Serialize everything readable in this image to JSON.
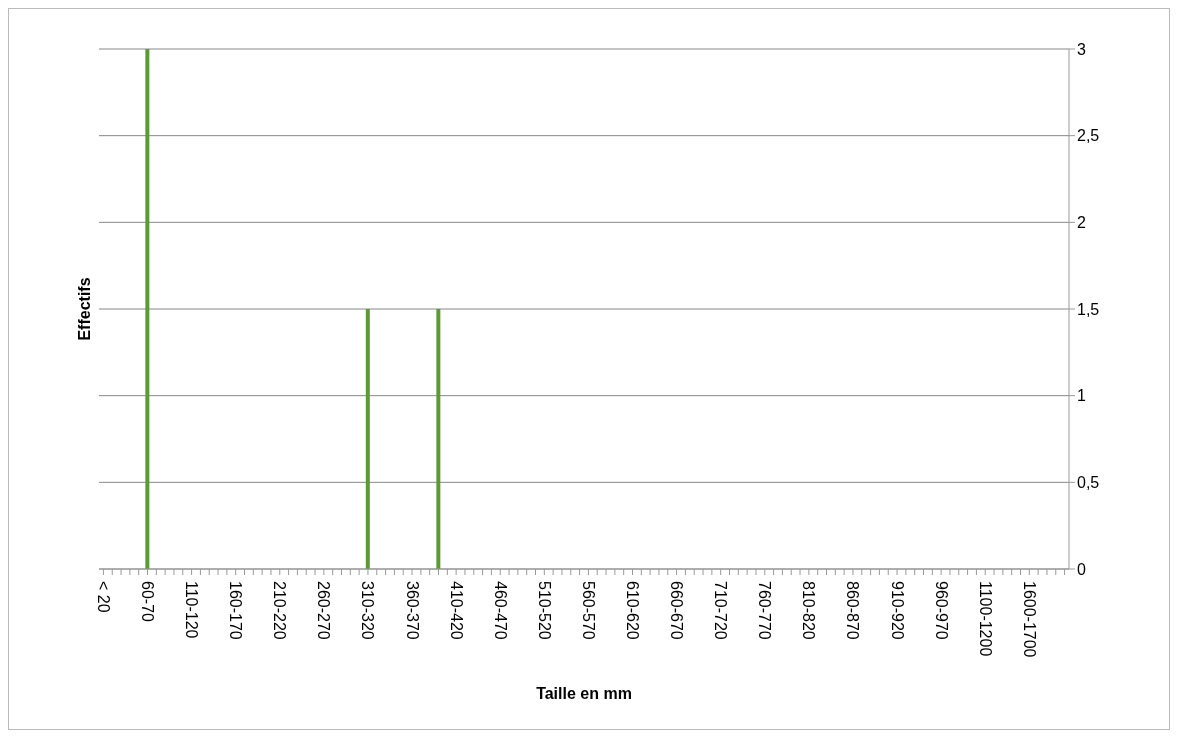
{
  "chart_data": {
    "type": "bar",
    "xlabel": "Taille en mm",
    "ylabel": "Effectifs",
    "categories": [
      "< 20",
      null,
      null,
      null,
      null,
      "60-70",
      null,
      null,
      null,
      null,
      "110-120",
      null,
      null,
      null,
      null,
      "160-170",
      null,
      null,
      null,
      null,
      "210-220",
      null,
      null,
      null,
      null,
      "260-270",
      null,
      null,
      null,
      null,
      "310-320",
      null,
      null,
      null,
      null,
      "360-370",
      null,
      null,
      null,
      null,
      "410-420",
      null,
      null,
      null,
      null,
      "460-470",
      null,
      null,
      null,
      null,
      "510-520",
      null,
      null,
      null,
      null,
      "560-570",
      null,
      null,
      null,
      null,
      "610-620",
      null,
      null,
      null,
      null,
      "660-670",
      null,
      null,
      null,
      null,
      "710-720",
      null,
      null,
      null,
      null,
      "760-770",
      null,
      null,
      null,
      null,
      "810-820",
      null,
      null,
      null,
      null,
      "860-870",
      null,
      null,
      null,
      null,
      "910-920",
      null,
      null,
      null,
      null,
      "960-970",
      null,
      null,
      null,
      null,
      "1100-1200",
      null,
      null,
      null,
      null,
      "1600-1700",
      null,
      null,
      null,
      null
    ],
    "values": [
      0,
      0,
      0,
      0,
      0,
      3,
      0,
      0,
      0,
      0,
      0,
      0,
      0,
      0,
      0,
      0,
      0,
      0,
      0,
      0,
      0,
      0,
      0,
      0,
      0,
      0,
      0,
      0,
      0,
      0,
      1.5,
      0,
      0,
      0,
      0,
      0,
      0,
      0,
      1.5,
      0,
      0,
      0,
      0,
      0,
      0,
      0,
      0,
      0,
      0,
      0,
      0,
      0,
      0,
      0,
      0,
      0,
      0,
      0,
      0,
      0,
      0,
      0,
      0,
      0,
      0,
      0,
      0,
      0,
      0,
      0,
      0,
      0,
      0,
      0,
      0,
      0,
      0,
      0,
      0,
      0,
      0,
      0,
      0,
      0,
      0,
      0,
      0,
      0,
      0,
      0,
      0,
      0,
      0,
      0,
      0,
      0,
      0,
      0,
      0,
      0,
      0,
      0,
      0,
      0,
      0,
      0,
      0,
      0,
      0,
      0
    ],
    "color": "#5b9b34",
    "ylim": [
      0,
      3
    ],
    "yticks": [
      0,
      {
        "value": 0.5,
        "label": "0,5"
      },
      1,
      {
        "value": 1.5,
        "label": "1,5"
      },
      2,
      {
        "value": 2.5,
        "label": "2,5"
      },
      3
    ],
    "grid": "y"
  }
}
